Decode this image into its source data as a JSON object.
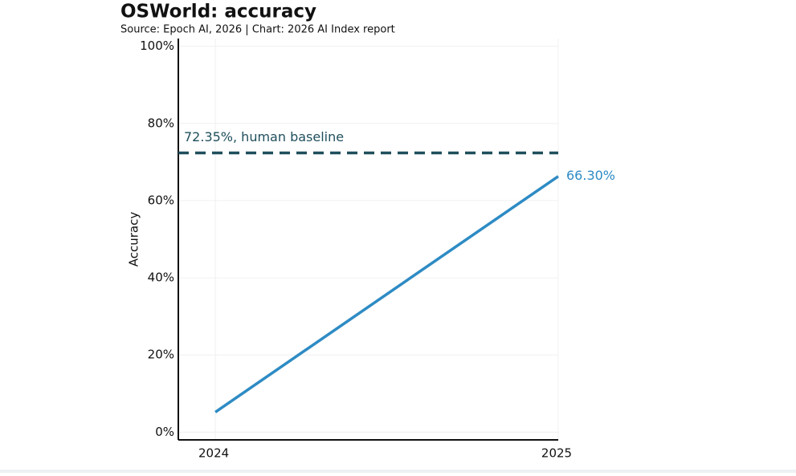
{
  "chart_data": {
    "type": "line",
    "title": "OSWorld: accuracy",
    "subtitle": "Source: Epoch AI, 2026 | Chart: 2026 AI Index report",
    "y_label": "Accuracy",
    "x": [
      2024,
      2025
    ],
    "xlim": [
      2023.892,
      2025
    ],
    "xticks": [
      2024,
      2025
    ],
    "ylim": [
      -2,
      102
    ],
    "yticks": [
      {
        "value": 0,
        "label": "0%"
      },
      {
        "value": 20,
        "label": "20%"
      },
      {
        "value": 40,
        "label": "40%"
      },
      {
        "value": 60,
        "label": "60%"
      },
      {
        "value": 80,
        "label": "80%"
      },
      {
        "value": 100,
        "label": "100%"
      }
    ],
    "grid": true,
    "series": [
      {
        "color": "#2e8bc4",
        "values": [
          5.2,
          66.3
        ],
        "value_labels": [
          null,
          "66.30%"
        ]
      }
    ],
    "baseline": {
      "value": 72.35,
      "label": "72.35%, human baseline",
      "color": "#1f4f5c"
    }
  }
}
